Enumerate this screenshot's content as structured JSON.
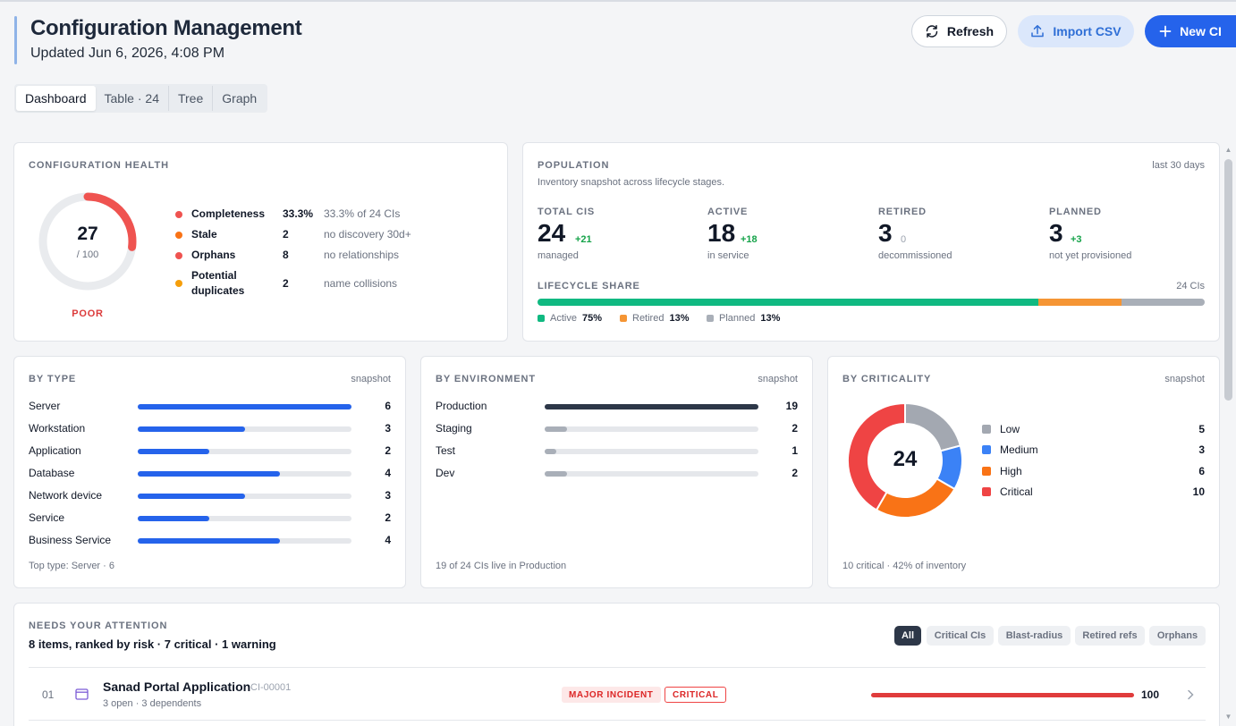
{
  "header": {
    "title": "Configuration Management",
    "updated": "Updated Jun 6, 2026, 4:08 PM",
    "buttons": {
      "refresh": "Refresh",
      "import": "Import CSV",
      "new": "New CI"
    }
  },
  "tabs": [
    "Dashboard",
    "Table · 24",
    "Tree",
    "Graph"
  ],
  "health": {
    "title": "CONFIGURATION HEALTH",
    "score": "27",
    "score_of": "/ 100",
    "score_fraction": 0.27,
    "rating": "POOR",
    "rows": [
      {
        "name": "Completeness",
        "value": "33.3%",
        "note": "33.3% of 24 CIs",
        "color": "#ef5350"
      },
      {
        "name": "Stale",
        "value": "2",
        "note": "no discovery 30d+",
        "color": "#f97316"
      },
      {
        "name": "Orphans",
        "value": "8",
        "note": "no relationships",
        "color": "#ef5350"
      },
      {
        "name": "Potential duplicates",
        "value": "2",
        "note": "name collisions",
        "color": "#f59e0b"
      }
    ]
  },
  "population": {
    "title": "POPULATION",
    "range": "last 30 days",
    "subtitle": "Inventory snapshot across lifecycle stages.",
    "stats": [
      {
        "label": "TOTAL CIS",
        "value": "24",
        "delta": "+21",
        "caption": "managed"
      },
      {
        "label": "ACTIVE",
        "value": "18",
        "delta": "+18",
        "caption": "in service"
      },
      {
        "label": "RETIRED",
        "value": "3",
        "delta": "0",
        "caption": "decommissioned"
      },
      {
        "label": "PLANNED",
        "value": "3",
        "delta": "+3",
        "caption": "not yet provisioned"
      }
    ],
    "lifecycle_title": "LIFECYCLE SHARE",
    "lifecycle_count": "24 CIs",
    "lifecycle": [
      {
        "name": "Active",
        "pct": "75%",
        "value": 18,
        "color": "#10b981"
      },
      {
        "name": "Retired",
        "pct": "13%",
        "value": 3,
        "color": "#f59534"
      },
      {
        "name": "Planned",
        "pct": "13%",
        "value": 3,
        "color": "#a9afb8"
      }
    ]
  },
  "by_type": {
    "title": "BY TYPE",
    "meta": "snapshot",
    "max": 6,
    "color": "#2563eb",
    "items": [
      {
        "label": "Server",
        "value": 6
      },
      {
        "label": "Workstation",
        "value": 3
      },
      {
        "label": "Application",
        "value": 2
      },
      {
        "label": "Database",
        "value": 4
      },
      {
        "label": "Network device",
        "value": 3
      },
      {
        "label": "Service",
        "value": 2
      },
      {
        "label": "Business Service",
        "value": 4
      }
    ],
    "footer": "Top type: Server · 6"
  },
  "by_env": {
    "title": "BY ENVIRONMENT",
    "meta": "snapshot",
    "max": 19,
    "items": [
      {
        "label": "Production",
        "value": 19,
        "color": "#2d3748"
      },
      {
        "label": "Staging",
        "value": 2,
        "color": "#a9afb8"
      },
      {
        "label": "Test",
        "value": 1,
        "color": "#a9afb8"
      },
      {
        "label": "Dev",
        "value": 2,
        "color": "#a9afb8"
      }
    ],
    "footer": "19 of 24 CIs live in Production"
  },
  "by_crit": {
    "title": "BY CRITICALITY",
    "meta": "snapshot",
    "total": "24",
    "items": [
      {
        "label": "Low",
        "value": 5,
        "color": "#a3a8b1"
      },
      {
        "label": "Medium",
        "value": 3,
        "color": "#3b82f6"
      },
      {
        "label": "High",
        "value": 6,
        "color": "#f97316"
      },
      {
        "label": "Critical",
        "value": 10,
        "color": "#ef4444"
      }
    ],
    "footer": "10 critical · 42% of inventory"
  },
  "attention": {
    "title": "NEEDS YOUR ATTENTION",
    "summary": "8 items, ranked by risk · 7 critical · 1 warning",
    "filters": [
      "All",
      "Critical CIs",
      "Blast-radius",
      "Retired refs",
      "Orphans"
    ],
    "rows": [
      {
        "num": "01",
        "name": "Sanad Portal Application",
        "id": "CI-00001",
        "caption": "3 open · 3 dependents",
        "tag1": "MAJOR INCIDENT",
        "tag2": "CRITICAL",
        "score": "100",
        "score_fraction": 1.0
      }
    ]
  }
}
